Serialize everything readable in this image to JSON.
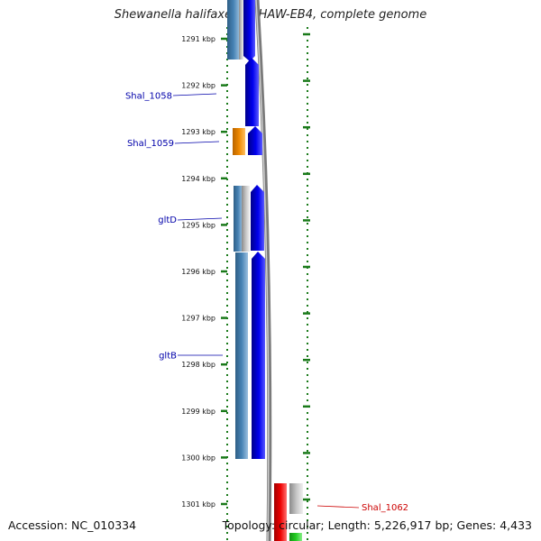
{
  "title": "Shewanella halifaxensis HAW-EB4, complete genome",
  "footer": {
    "accession": "Accession: NC_010334",
    "summary": "Topology: circular; Length: 5,226,917 bp; Genes: 4,433"
  },
  "ruler": {
    "unit": "kbp",
    "labels": [
      "1291 kbp",
      "1292 kbp",
      "1293 kbp",
      "1294 kbp",
      "1295 kbp",
      "1296 kbp",
      "1297 kbp",
      "1298 kbp",
      "1299 kbp",
      "1300 kbp",
      "1301 kbp"
    ]
  },
  "gene_labels": [
    {
      "text": "Shal_1058",
      "color": "#0000aa"
    },
    {
      "text": "Shal_1059",
      "color": "#0000aa"
    },
    {
      "text": "gltD",
      "color": "#0000aa"
    },
    {
      "text": "gltB",
      "color": "#0000aa"
    },
    {
      "text": "Shal_1062",
      "color": "#cc0000"
    }
  ],
  "colors": {
    "forward_cds": "#0000ee",
    "reverse_cds": "#4682b4",
    "gap_segment": "#b8b8b8",
    "orange_feature": "#ee8800",
    "red_feature": "#ee0000",
    "green_feature": "#22cc22",
    "ruler_ticks": "#1a7a1a",
    "backbone": "#7a7a7a"
  }
}
